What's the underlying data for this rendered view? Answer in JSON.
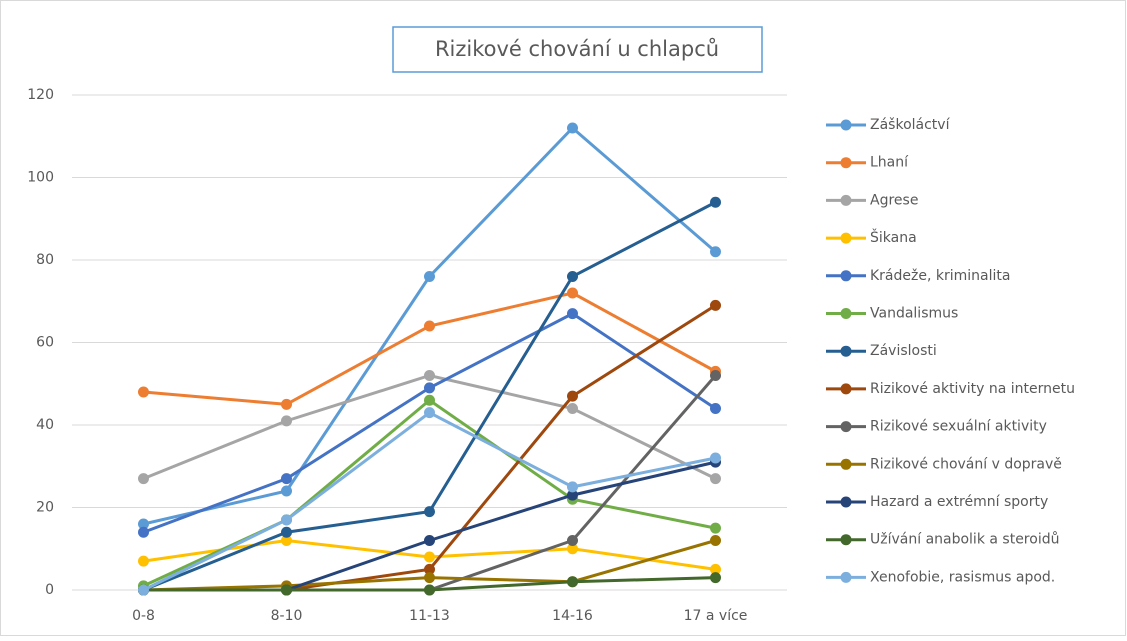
{
  "chart_data": {
    "type": "line",
    "title": "Rizikové chování u chlapců",
    "categories": [
      "0-8",
      "8-10",
      "11-13",
      "14-16",
      "17 a více"
    ],
    "ylim": [
      0,
      120
    ],
    "yticks": [
      0,
      20,
      40,
      60,
      80,
      100,
      120
    ],
    "grid": true,
    "legend": "right",
    "series": [
      {
        "name": "Záškoláctví",
        "color": "#5b9bd5",
        "values": [
          16,
          24,
          76,
          112,
          82
        ]
      },
      {
        "name": "Lhaní",
        "color": "#ed7d31",
        "values": [
          48,
          45,
          64,
          72,
          53
        ]
      },
      {
        "name": "Agrese",
        "color": "#a5a5a5",
        "values": [
          27,
          41,
          52,
          44,
          27
        ]
      },
      {
        "name": "Šikana",
        "color": "#ffc000",
        "values": [
          7,
          12,
          8,
          10,
          5
        ]
      },
      {
        "name": "Krádeže, kriminalita",
        "color": "#4472c4",
        "values": [
          14,
          27,
          49,
          67,
          44
        ]
      },
      {
        "name": "Vandalismus",
        "color": "#70ad47",
        "values": [
          1,
          17,
          46,
          22,
          15
        ]
      },
      {
        "name": "Závislosti",
        "color": "#255e91",
        "values": [
          0,
          14,
          19,
          76,
          94
        ]
      },
      {
        "name": "Rizikové aktivity na internetu",
        "color": "#9e480e",
        "values": [
          0,
          0,
          5,
          47,
          69
        ]
      },
      {
        "name": "Rizikové sexuální aktivity",
        "color": "#636363",
        "values": [
          0,
          0,
          0,
          12,
          52
        ]
      },
      {
        "name": "Rizikové chování v dopravě",
        "color": "#997300",
        "values": [
          0,
          1,
          3,
          2,
          12
        ]
      },
      {
        "name": "Hazard a extrémní sporty",
        "color": "#264478",
        "values": [
          0,
          0,
          12,
          23,
          31
        ]
      },
      {
        "name": "Užívání anabolik a steroidů",
        "color": "#43682b",
        "values": [
          0,
          0,
          0,
          2,
          3
        ]
      },
      {
        "name": "Xenofobie, rasismus apod.",
        "color": "#7cafdd",
        "values": [
          0,
          17,
          43,
          25,
          32
        ]
      }
    ]
  }
}
